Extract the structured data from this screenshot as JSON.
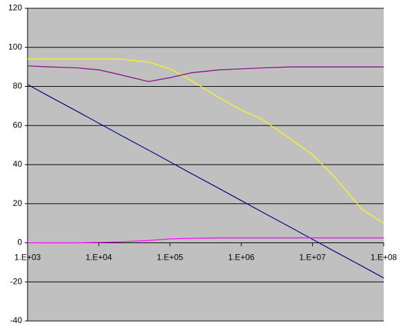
{
  "chart_data": {
    "type": "line",
    "x": [
      1000,
      2000,
      5000,
      10000,
      20000,
      50000,
      100000,
      200000,
      500000,
      1000000,
      2000000,
      5000000,
      10000000,
      20000000,
      50000000,
      100000000
    ],
    "series": [
      {
        "color": "#000080",
        "values": [
          81,
          75,
          67.2,
          61.2,
          55.2,
          47.4,
          41.4,
          35.4,
          27.6,
          21.6,
          15.6,
          7.8,
          1.8,
          -4.2,
          -12,
          -18
        ]
      },
      {
        "color": "#ffff00",
        "values": [
          94,
          94,
          94,
          94,
          94,
          92.5,
          89,
          83,
          74,
          68,
          63,
          53,
          45,
          34,
          17,
          10
        ]
      },
      {
        "color": "#800080",
        "values": [
          90.5,
          90,
          89.5,
          88.5,
          86,
          82.5,
          84.5,
          87,
          88.5,
          89,
          89.5,
          90,
          90,
          90,
          90,
          90
        ]
      },
      {
        "color": "#ff00ff",
        "values": [
          0,
          0,
          0,
          0.2,
          0.5,
          1.2,
          2,
          2.3,
          2.5,
          2.5,
          2.5,
          2.5,
          2.5,
          2.5,
          2.5,
          2.5
        ]
      }
    ],
    "xlog": true,
    "xlim": [
      1000,
      100000000
    ],
    "xticks": [
      {
        "value": 1000,
        "label": "1.E+03"
      },
      {
        "value": 10000,
        "label": "1.E+04"
      },
      {
        "value": 100000,
        "label": "1.E+05"
      },
      {
        "value": 1000000,
        "label": "1.E+06"
      },
      {
        "value": 10000000,
        "label": "1.E+07"
      },
      {
        "value": 100000000,
        "label": "1.E+08"
      }
    ],
    "ylim": [
      -40,
      120
    ],
    "yticks": [
      -40,
      -20,
      0,
      20,
      40,
      60,
      80,
      100,
      120
    ],
    "grid": true,
    "plot_background": "#c0c0c0"
  }
}
